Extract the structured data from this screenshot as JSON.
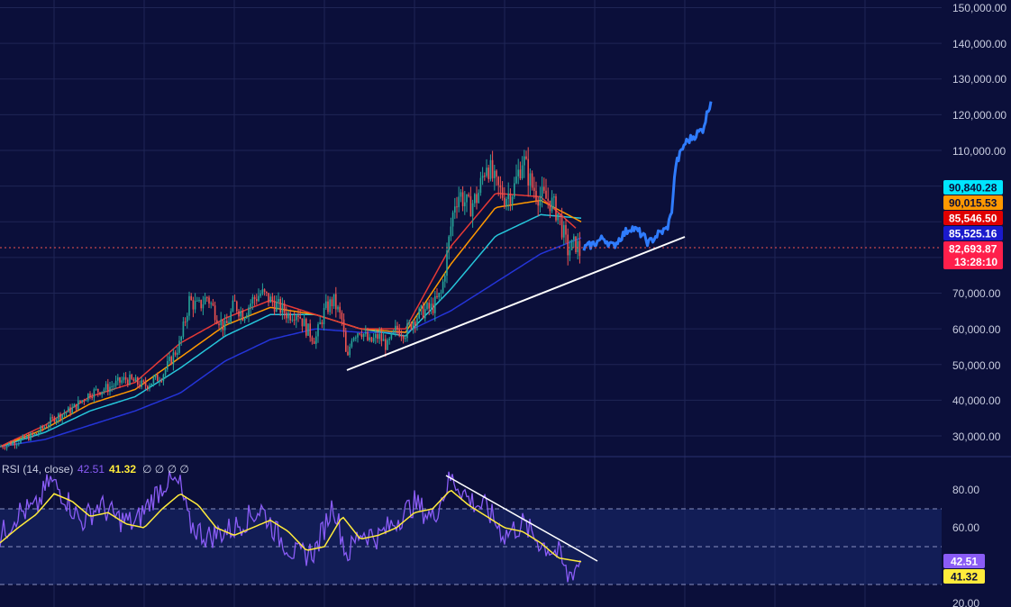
{
  "colors": {
    "background": "#0b0f3a",
    "grid": "#1f2555",
    "candle_up": "#26a69a",
    "candle_down": "#ef5350",
    "ema_fast": "#e53935",
    "ema_mid": "#ff9800",
    "ema_slow": "#26c6da",
    "ema_long": "#2434d8",
    "projection": "#2f7cff",
    "trendline": "#ffffff",
    "rsi_line": "#8a5cf6",
    "rsi_ma": "#ffeb3b",
    "rsi_band": "#1a2a6e",
    "current_price_line": "#ef5350"
  },
  "price_axis": {
    "labels": [
      "150,000.00",
      "140,000.00",
      "130,000.00",
      "120,000.00",
      "110,000.00",
      "70,000.00",
      "60,000.00",
      "50,000.00",
      "40,000.00",
      "30,000.00"
    ]
  },
  "price_badges": [
    {
      "label": "90,840.28",
      "bg": "#00e5ff",
      "fg": "#0b0f3a"
    },
    {
      "label": "90,015.53",
      "bg": "#ff9800",
      "fg": "#0b0f3a"
    },
    {
      "label": "85,546.50",
      "bg": "#e00000",
      "fg": "#ffffff"
    },
    {
      "label": "85,525.16",
      "bg": "#1a1acc",
      "fg": "#ffffff"
    },
    {
      "label": "82,693.87",
      "bg": "#ff1f4b",
      "fg": "#ffffff"
    },
    {
      "label": "13:28:10",
      "bg": "#ff1f4b",
      "fg": "#ffffff"
    }
  ],
  "rsi_axis": {
    "labels": [
      "80.00",
      "60.00",
      "20.00"
    ]
  },
  "rsi_badges": [
    {
      "label": "42.51",
      "bg": "#8a5cf6",
      "fg": "#ffffff"
    },
    {
      "label": "41.32",
      "bg": "#ffeb3b",
      "fg": "#0b0f3a"
    }
  ],
  "rsi_legend": {
    "name": "RSI (14, close)",
    "value_rsi": "42.51",
    "value_ma": "41.32",
    "placeholders": "∅ ∅ ∅ ∅"
  },
  "chart_data": [
    {
      "type": "line",
      "title": "",
      "ylim": [
        25000,
        150000
      ],
      "grid": true,
      "series": [
        {
          "key": "price",
          "x": [
            0,
            20,
            40,
            60,
            80,
            100,
            120,
            140,
            160,
            180,
            200,
            210,
            220,
            230,
            240,
            250,
            260,
            270,
            280,
            290,
            300,
            310,
            320,
            330,
            340,
            350,
            360,
            370,
            380,
            385,
            390,
            400,
            410,
            420,
            430,
            440,
            450,
            460,
            470,
            480,
            490,
            500,
            505,
            510,
            520,
            530,
            540,
            550,
            560,
            570,
            580,
            590,
            600,
            610,
            620,
            630,
            640,
            645
          ],
          "values": [
            27000,
            28500,
            30500,
            35000,
            37500,
            42000,
            43500,
            46000,
            44000,
            47000,
            56000,
            68000,
            66000,
            69000,
            64000,
            60000,
            67000,
            64000,
            68000,
            70000,
            68000,
            66000,
            64000,
            65000,
            60000,
            57000,
            65000,
            68000,
            62000,
            50000,
            58000,
            60000,
            56000,
            58000,
            55000,
            60000,
            59000,
            63000,
            65000,
            66000,
            70000,
            88000,
            96000,
            98000,
            94000,
            97000,
            107000,
            100000,
            97000,
            99000,
            108000,
            100000,
            97000,
            96000,
            92000,
            82000,
            84000,
            80000
          ]
        },
        {
          "key": "projection",
          "x": [
            648,
            660,
            670,
            680,
            690,
            700,
            710,
            720,
            730,
            740,
            745,
            750,
            760,
            770,
            780,
            790
          ],
          "values": [
            82500,
            84000,
            85500,
            83000,
            86000,
            88500,
            87000,
            84000,
            86500,
            88000,
            92000,
            106000,
            112000,
            114000,
            116000,
            125000
          ]
        },
        {
          "key": "ema_fast",
          "x": [
            0,
            50,
            100,
            150,
            200,
            250,
            300,
            350,
            400,
            450,
            500,
            550,
            600,
            640
          ],
          "values": [
            27000,
            33000,
            41000,
            45000,
            56000,
            63000,
            68000,
            64000,
            60000,
            60000,
            83000,
            98000,
            97000,
            88000
          ]
        },
        {
          "key": "ema_mid",
          "x": [
            0,
            50,
            100,
            150,
            200,
            250,
            300,
            350,
            400,
            450,
            500,
            550,
            600,
            645
          ],
          "values": [
            27000,
            32000,
            39000,
            43000,
            52000,
            61000,
            66000,
            64000,
            60000,
            59000,
            78000,
            94000,
            96000,
            90000
          ]
        },
        {
          "key": "ema_slow",
          "x": [
            0,
            50,
            100,
            150,
            200,
            250,
            300,
            350,
            400,
            450,
            500,
            550,
            600,
            645
          ],
          "values": [
            27000,
            31000,
            37000,
            41000,
            49000,
            58000,
            64000,
            64000,
            60000,
            58000,
            71000,
            86000,
            92000,
            91000
          ]
        },
        {
          "key": "ema_long",
          "x": [
            0,
            50,
            100,
            150,
            200,
            250,
            300,
            350,
            400,
            450,
            500,
            550,
            600,
            645
          ],
          "values": [
            27000,
            29000,
            33000,
            37000,
            42000,
            51000,
            57000,
            60000,
            59000,
            59000,
            65000,
            73000,
            81000,
            85500
          ]
        }
      ]
    },
    {
      "type": "line",
      "title": "RSI (14, close)",
      "ylim": [
        20,
        90
      ],
      "grid": true,
      "bands": [
        70,
        50,
        30
      ],
      "series": [
        {
          "key": "rsi",
          "x": [
            0,
            20,
            40,
            55,
            70,
            90,
            110,
            130,
            150,
            170,
            185,
            200,
            210,
            230,
            260,
            290,
            310,
            330,
            350,
            370,
            385,
            400,
            420,
            440,
            460,
            480,
            500,
            510,
            520,
            540,
            560,
            580,
            600,
            620,
            630,
            645
          ],
          "values": [
            55,
            68,
            70,
            85,
            78,
            63,
            72,
            65,
            62,
            76,
            85,
            82,
            62,
            55,
            60,
            70,
            55,
            45,
            48,
            73,
            45,
            58,
            55,
            64,
            73,
            65,
            86,
            82,
            75,
            70,
            56,
            62,
            52,
            46,
            34,
            43
          ]
        },
        {
          "key": "rsi_ma",
          "x": [
            0,
            20,
            40,
            60,
            80,
            100,
            120,
            140,
            160,
            180,
            200,
            220,
            240,
            260,
            280,
            300,
            320,
            340,
            360,
            380,
            400,
            420,
            440,
            460,
            480,
            500,
            520,
            540,
            560,
            580,
            600,
            620,
            645
          ],
          "values": [
            52,
            60,
            67,
            78,
            74,
            66,
            68,
            62,
            60,
            70,
            78,
            72,
            60,
            56,
            60,
            64,
            58,
            48,
            50,
            66,
            54,
            56,
            60,
            68,
            70,
            80,
            72,
            66,
            60,
            58,
            52,
            44,
            42
          ]
        }
      ]
    }
  ]
}
